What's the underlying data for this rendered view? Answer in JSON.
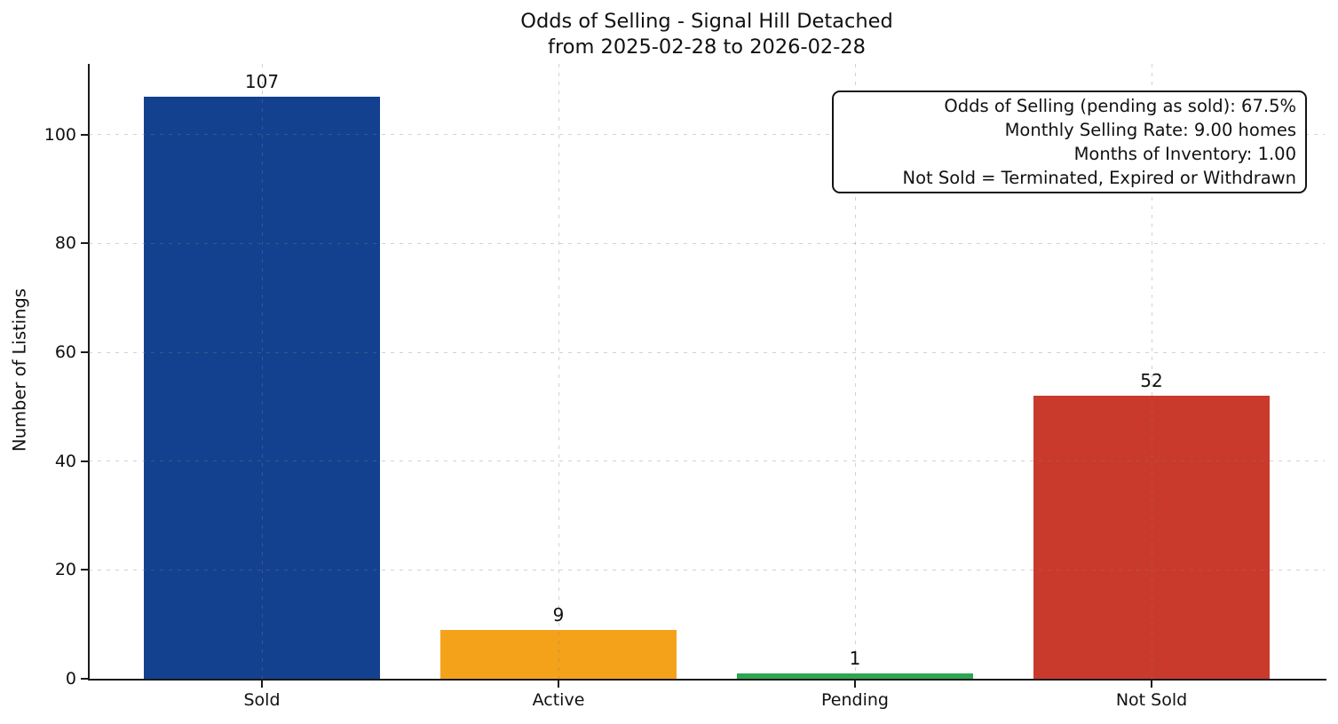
{
  "title": {
    "line1": "Odds of Selling - Signal Hill Detached",
    "line2": "from 2025-02-28 to 2026-02-28"
  },
  "chart_data": {
    "type": "bar",
    "title": "Odds of Selling - Signal Hill Detached from 2025-02-28 to 2026-02-28",
    "categories": [
      "Sold",
      "Active",
      "Pending",
      "Not Sold"
    ],
    "values": [
      107,
      9,
      1,
      52
    ],
    "colors": [
      "#14418f",
      "#f5a21b",
      "#2ea552",
      "#c93a2d"
    ],
    "xlabel": "",
    "ylabel": "Number of Listings",
    "ylim": [
      0,
      113
    ],
    "yticks": [
      0,
      20,
      40,
      60,
      80,
      100
    ],
    "grid": "both-axes-dashed",
    "legend": "none",
    "annotation_box": {
      "position": "top-right",
      "text_align": "right",
      "lines": [
        "Odds of Selling (pending as sold): 67.5%",
        "Monthly Selling Rate: 9.00 homes",
        "Months of Inventory: 1.00",
        "Not Sold = Terminated, Expired or Withdrawn"
      ]
    }
  }
}
